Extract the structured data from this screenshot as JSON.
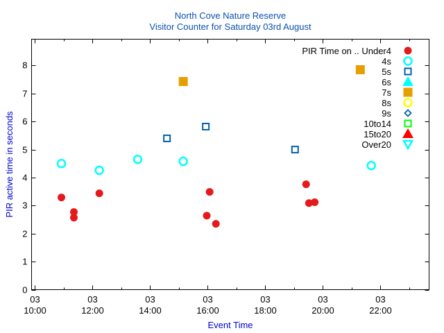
{
  "chart_data": {
    "type": "scatter",
    "title": "North Cove Nature Reserve",
    "subtitle": "Visitor Counter for Saturday 03rd August",
    "xlabel": "Event Time",
    "ylabel": "PIR active time in seconds",
    "xlim_hours": [
      9.88,
      23.69
    ],
    "ylim": [
      0,
      8.94
    ],
    "grid": false,
    "legend_placement": "top-right",
    "legend_title": "PIR Time on ..",
    "yticks": [
      0,
      1,
      2,
      3,
      4,
      5,
      6,
      7,
      8
    ],
    "xticks": [
      {
        "hour": 10,
        "day": "03",
        "time": "10:00"
      },
      {
        "hour": 12,
        "day": "03",
        "time": "12:00"
      },
      {
        "hour": 14,
        "day": "03",
        "time": "14:00"
      },
      {
        "hour": 16,
        "day": "03",
        "time": "16:00"
      },
      {
        "hour": 18,
        "day": "03",
        "time": "18:00"
      },
      {
        "hour": 20,
        "day": "03",
        "time": "20:00"
      },
      {
        "hour": 22,
        "day": "03",
        "time": "22:00"
      }
    ],
    "minor_xticks": [
      11,
      13,
      15,
      17,
      19,
      21,
      23
    ],
    "series": [
      {
        "name": "Under4",
        "marker": "circle-filled",
        "color": "#e41a1c",
        "points": [
          [
            "10:55",
            3.29
          ],
          [
            "11:21",
            2.77
          ],
          [
            "11:21",
            2.57
          ],
          [
            "12:14",
            3.44
          ],
          [
            "15:58",
            2.64
          ],
          [
            "16:04",
            3.49
          ],
          [
            "16:17",
            2.35
          ],
          [
            "19:25",
            3.76
          ],
          [
            "19:31",
            3.09
          ],
          [
            "19:43",
            3.12
          ]
        ]
      },
      {
        "name": "4s",
        "marker": "circle-open",
        "color": "#00ffff",
        "points": [
          [
            "10:55",
            4.5
          ],
          [
            "12:14",
            4.26
          ],
          [
            "13:34",
            4.65
          ],
          [
            "15:09",
            4.58
          ],
          [
            "21:41",
            4.43
          ]
        ]
      },
      {
        "name": "5s",
        "marker": "square-open",
        "color": "#0060ad",
        "points": [
          [
            "14:35",
            5.4
          ],
          [
            "15:56",
            5.82
          ],
          [
            "19:02",
            5.0
          ]
        ]
      },
      {
        "name": "6s",
        "marker": "triangle-filled",
        "color": "#00ffff",
        "points": []
      },
      {
        "name": "7s",
        "marker": "square-filled",
        "color": "#e69f00",
        "points": [
          [
            "15:09",
            7.43
          ],
          [
            "21:18",
            7.85
          ]
        ]
      },
      {
        "name": "8s",
        "marker": "circle-open",
        "color": "#ffff00",
        "points": []
      },
      {
        "name": "9s",
        "marker": "diamond-open",
        "color": "#0060ad",
        "points": []
      },
      {
        "name": "10to14",
        "marker": "square-open",
        "color": "#00ff00",
        "points": []
      },
      {
        "name": "15to20",
        "marker": "triangle-filled",
        "color": "#ff0000",
        "points": []
      },
      {
        "name": "Over20",
        "marker": "triangle-down-open",
        "color": "#00ffff",
        "points": []
      }
    ],
    "text_color": "#0000cc"
  }
}
